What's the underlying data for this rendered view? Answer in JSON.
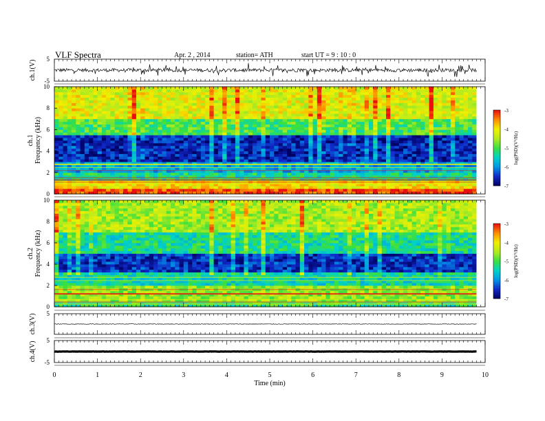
{
  "header": {
    "title": "VLF  Spectra",
    "date": "Apr. 2  ,  2014",
    "station": "station= ATH",
    "start": "start  UT  =   9  : 10 : 0"
  },
  "colors": {
    "low": "#000060",
    "mid_low": "#1040d8",
    "mid": "#00c8c8",
    "mid_high": "#38e040",
    "high": "#f0f000",
    "peak": "#e81010"
  },
  "chart_data": [
    {
      "type": "line",
      "panel": "ch1",
      "ylabel": "ch.1(V)",
      "ylim": [
        -5,
        5
      ],
      "yticks": [
        "5",
        "-5"
      ],
      "xlim": [
        0,
        10
      ],
      "description_values": {
        "baseline": 0,
        "spike_range": [
          -3,
          3
        ]
      }
    },
    {
      "type": "heatmap",
      "panel": "ch1-spectrogram",
      "ylabel_channel": "ch.1",
      "ylabel": "Frequency  (kHz)",
      "yticks": [
        "0",
        "2",
        "4",
        "6",
        "8",
        "10"
      ],
      "ylim": [
        0,
        10
      ],
      "xlim": [
        0,
        9.8
      ],
      "colorbar": {
        "label": "log(PSD)(V²/Hz)",
        "ticks": [
          "-3",
          "-4",
          "-5",
          "-6",
          "-7"
        ],
        "range": [
          -7,
          -3
        ]
      },
      "bands": [
        {
          "from": 0,
          "to": 0.4,
          "level": -3.2
        },
        {
          "from": 0.4,
          "to": 1.2,
          "level": -4.0
        },
        {
          "from": 1.2,
          "to": 2.0,
          "level": -5.3
        },
        {
          "from": 2.0,
          "to": 3.0,
          "level": -5.8
        },
        {
          "from": 3.0,
          "to": 5.5,
          "level": -6.6
        },
        {
          "from": 5.5,
          "to": 7.0,
          "level": -5.0
        },
        {
          "from": 7.0,
          "to": 10,
          "level": -4.2
        }
      ]
    },
    {
      "type": "heatmap",
      "panel": "ch2-spectrogram",
      "ylabel_channel": "ch.2",
      "ylabel": "Frequency  (kHz)",
      "yticks": [
        "0",
        "2",
        "4",
        "6",
        "8",
        "10"
      ],
      "ylim": [
        0,
        10
      ],
      "xlim": [
        0,
        9.8
      ],
      "colorbar": {
        "label": "log(PSD)(V²/Hz)",
        "ticks": [
          "-3",
          "-4",
          "-5",
          "-6",
          "-7"
        ],
        "range": [
          -7,
          -3
        ]
      },
      "bands": [
        {
          "from": 0,
          "to": 0.4,
          "level": -5.2
        },
        {
          "from": 0.4,
          "to": 2.0,
          "level": -4.6
        },
        {
          "from": 2.0,
          "to": 3.2,
          "level": -5.4
        },
        {
          "from": 3.2,
          "to": 5.0,
          "level": -6.5
        },
        {
          "from": 5.0,
          "to": 7.0,
          "level": -5.3
        },
        {
          "from": 7.0,
          "to": 10,
          "level": -4.5
        }
      ]
    },
    {
      "type": "line",
      "panel": "ch3",
      "ylabel": "ch.3(V)",
      "ylim": [
        -5,
        5
      ],
      "yticks": [
        "5"
      ],
      "xlim": [
        0,
        9.8
      ],
      "description_values": {
        "baseline": 0
      }
    },
    {
      "type": "line",
      "panel": "ch4",
      "ylabel": "ch.4(V)",
      "ylim": [
        -5,
        5
      ],
      "yticks": [
        "5",
        "-5"
      ],
      "xlim": [
        0,
        9.8
      ],
      "description_values": {
        "baseline": 0
      }
    },
    {
      "type": "axis",
      "panel": "time-axis",
      "xlabel": "Time  (min)",
      "xticks": [
        "0",
        "1",
        "2",
        "3",
        "4",
        "5",
        "6",
        "7",
        "8",
        "9",
        "10"
      ],
      "xlim": [
        0,
        10
      ]
    }
  ]
}
